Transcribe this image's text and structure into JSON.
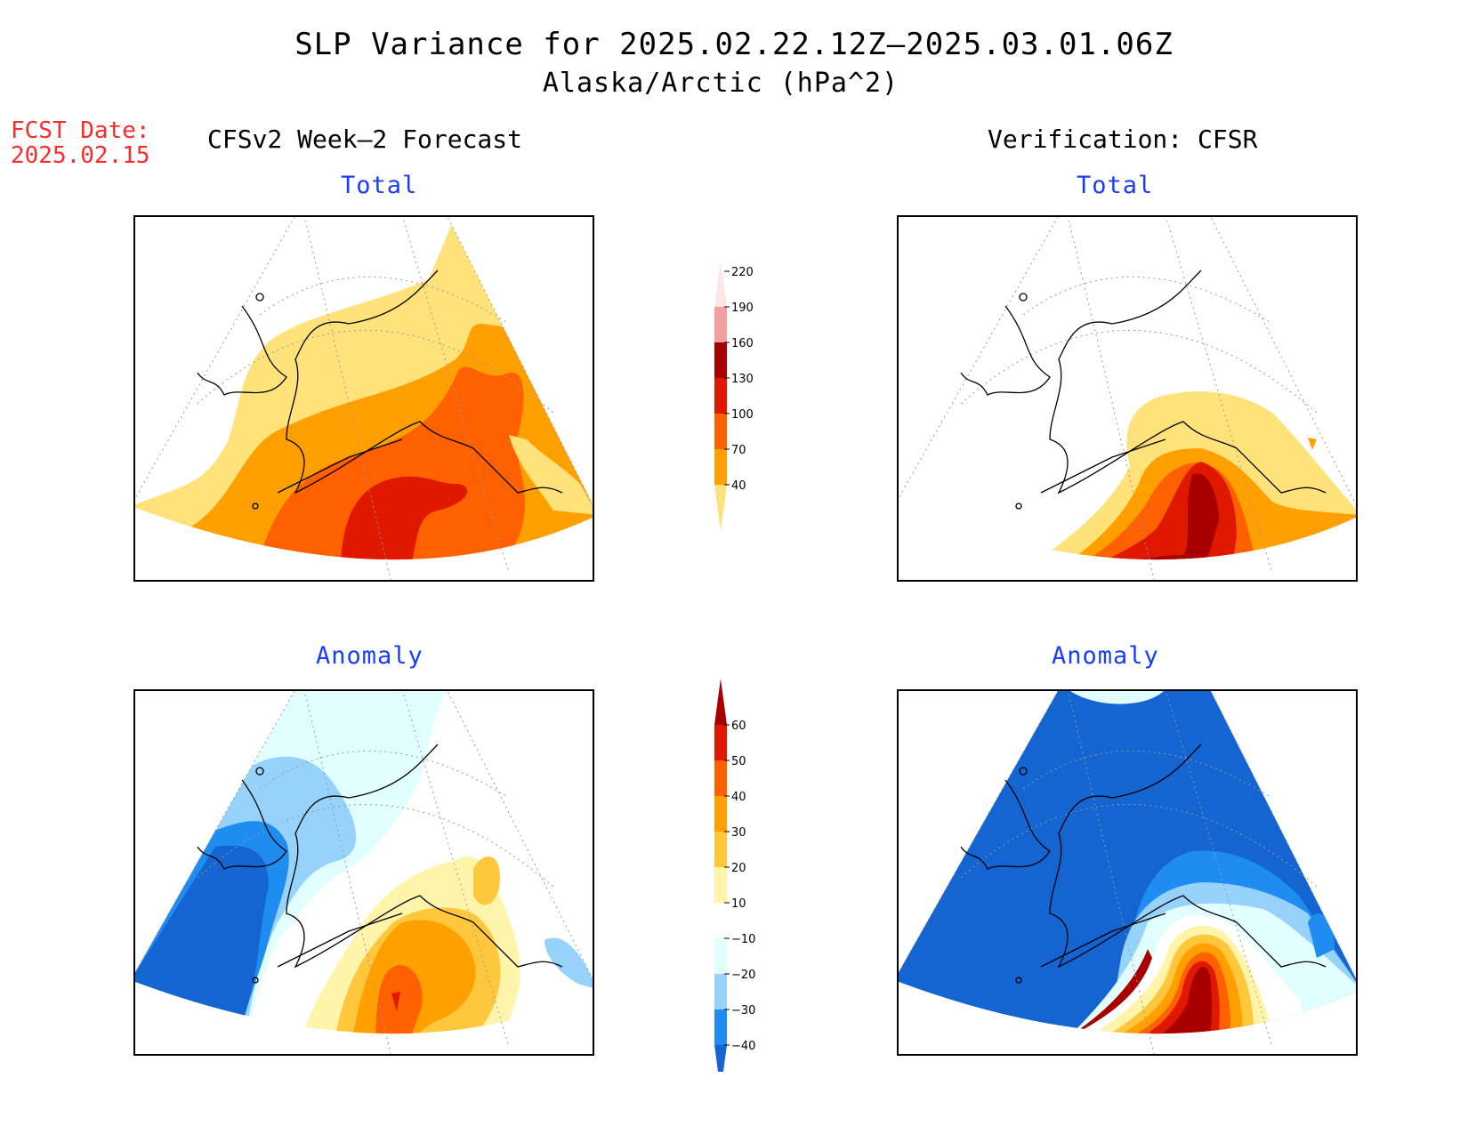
{
  "header": {
    "title": "SLP Variance for 2025.02.22.12Z–2025.03.01.06Z",
    "subtitle": "Alaska/Arctic (hPa^2)",
    "fcst_label": "FCST Date:",
    "fcst_date": "2025.02.15"
  },
  "columns": {
    "left": "CFSv2 Week–2 Forecast",
    "right": "Verification: CFSR"
  },
  "panels": {
    "top_left": "Total",
    "top_right": "Total",
    "bottom_left": "Anomaly",
    "bottom_right": "Anomaly"
  },
  "colorbar_total": {
    "levels": [
      "40",
      "70",
      "100",
      "130",
      "160",
      "190",
      "220"
    ],
    "colors": [
      "#ffe27a",
      "#ffa000",
      "#ff6000",
      "#e01800",
      "#a80000",
      "#f4a0a0",
      "#ffe6e6"
    ]
  },
  "colorbar_anomaly": {
    "levels": [
      "−40",
      "−30",
      "−20",
      "−10",
      "10",
      "20",
      "30",
      "40",
      "50",
      "60"
    ],
    "colors": [
      "#1464d2",
      "#1e8cf0",
      "#96d2fa",
      "#e1ffff",
      "#ffffff",
      "#fff5aa",
      "#ffc83c",
      "#ffa000",
      "#ff6000",
      "#e01800",
      "#a80000"
    ]
  }
}
